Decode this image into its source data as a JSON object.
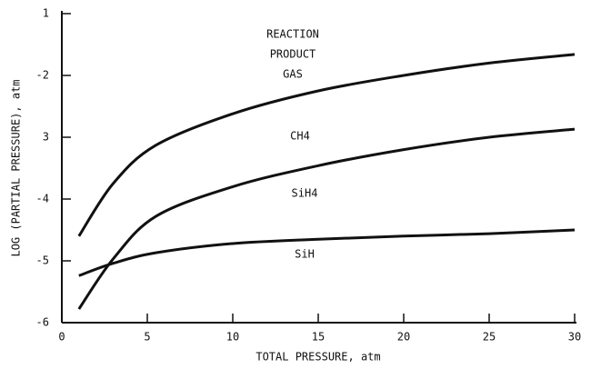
{
  "chart_data": {
    "type": "line",
    "xlabel": "TOTAL PRESSURE, atm",
    "ylabel": "LOG (PARTIAL PRESSURE), atm",
    "annotations": [
      "REACTION",
      "PRODUCT",
      "GAS"
    ],
    "x": [
      1,
      3,
      5.5,
      10,
      15,
      20,
      25,
      30
    ],
    "series": [
      {
        "name": "CH4",
        "color": "#111111",
        "values": [
          -4.6,
          -3.75,
          -3.13,
          -2.62,
          -2.25,
          -2.0,
          -1.8,
          -1.66
        ]
      },
      {
        "name": "SiH4",
        "color": "#111111",
        "values": [
          -5.78,
          -4.97,
          -4.28,
          -3.8,
          -3.46,
          -3.2,
          -3.0,
          -2.87
        ]
      },
      {
        "name": "SiH",
        "color": "#111111",
        "values": [
          -5.24,
          -5.04,
          -4.87,
          -4.72,
          -4.65,
          -4.6,
          -4.56,
          -4.5
        ]
      }
    ],
    "xlim": [
      0,
      30
    ],
    "xticks": [
      0,
      5,
      10,
      15,
      20,
      25,
      30
    ],
    "ylim": [
      -6,
      -1
    ],
    "yticks": [
      -6,
      -5,
      -4,
      {
        "value": -3,
        "label": "3"
      },
      -2,
      {
        "value": -1,
        "label": "1"
      }
    ],
    "grid": false
  }
}
